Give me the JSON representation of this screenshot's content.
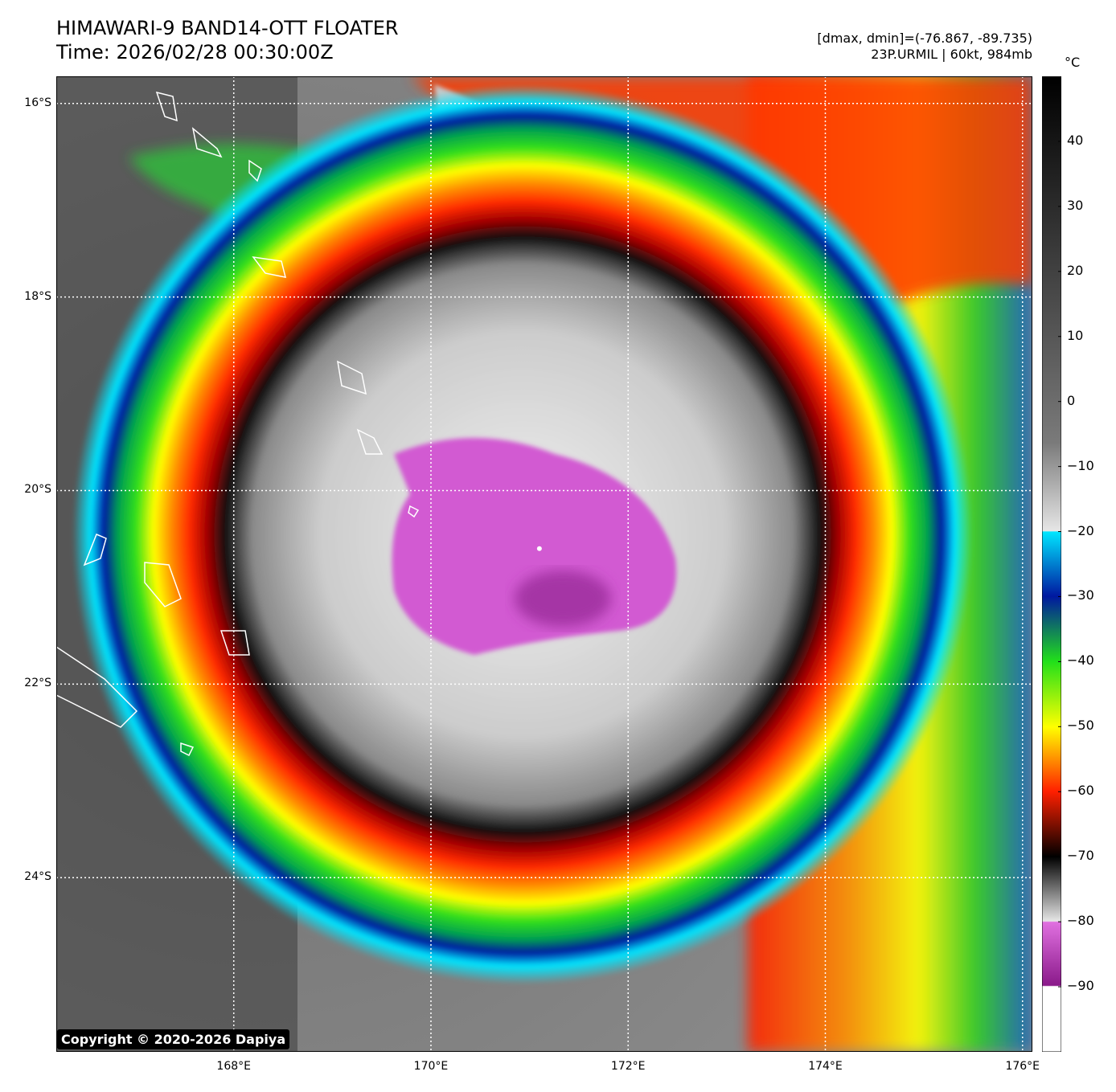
{
  "header": {
    "title_line1": "HIMAWARI-9 BAND14-OTT FLOATER",
    "title_line2": "Time: 2026/02/28 00:30:00Z",
    "range_text": "[dmax, dmin]=(-76.867, -89.735)",
    "storm_text": "23P.URMIL | 60kt, 984mb"
  },
  "map": {
    "lat_labels": [
      "16°S",
      "18°S",
      "20°S",
      "22°S",
      "24°S"
    ],
    "lon_labels": [
      "168°E",
      "170°E",
      "172°E",
      "174°E",
      "176°E"
    ],
    "lat_values": [
      -16,
      -18,
      -20,
      -22,
      -24
    ],
    "lon_values": [
      168,
      170,
      172,
      174,
      176
    ],
    "lon_range": [
      166.2,
      176.1
    ],
    "lat_range": [
      -25.8,
      -15.72
    ],
    "storm_center": {
      "lon": 171.1,
      "lat": -20.6
    },
    "copyright": "Copyright © 2020-2026 Dapiya"
  },
  "colorbar": {
    "unit": "°C",
    "range": [
      -100,
      50
    ],
    "tick_labels": [
      "40",
      "30",
      "20",
      "10",
      "0",
      "−10",
      "−20",
      "−30",
      "−40",
      "−50",
      "−60",
      "−70",
      "−80",
      "−90"
    ],
    "tick_values": [
      40,
      30,
      20,
      10,
      0,
      -10,
      -20,
      -30,
      -40,
      -50,
      -60,
      -70,
      -80,
      -90
    ]
  },
  "colors": {
    "eye_coldest": "#d34fd3",
    "cloud_white": "#e6e6e6",
    "ring_black": "#0d0d0d",
    "ring_red": "#e60000",
    "ring_orange": "#ff7a00",
    "ring_yellow": "#ffff00",
    "ring_green": "#22e01a",
    "ring_blue": "#0018a0",
    "ring_cyan": "#00e6ff",
    "coastline": "#ffffff"
  }
}
